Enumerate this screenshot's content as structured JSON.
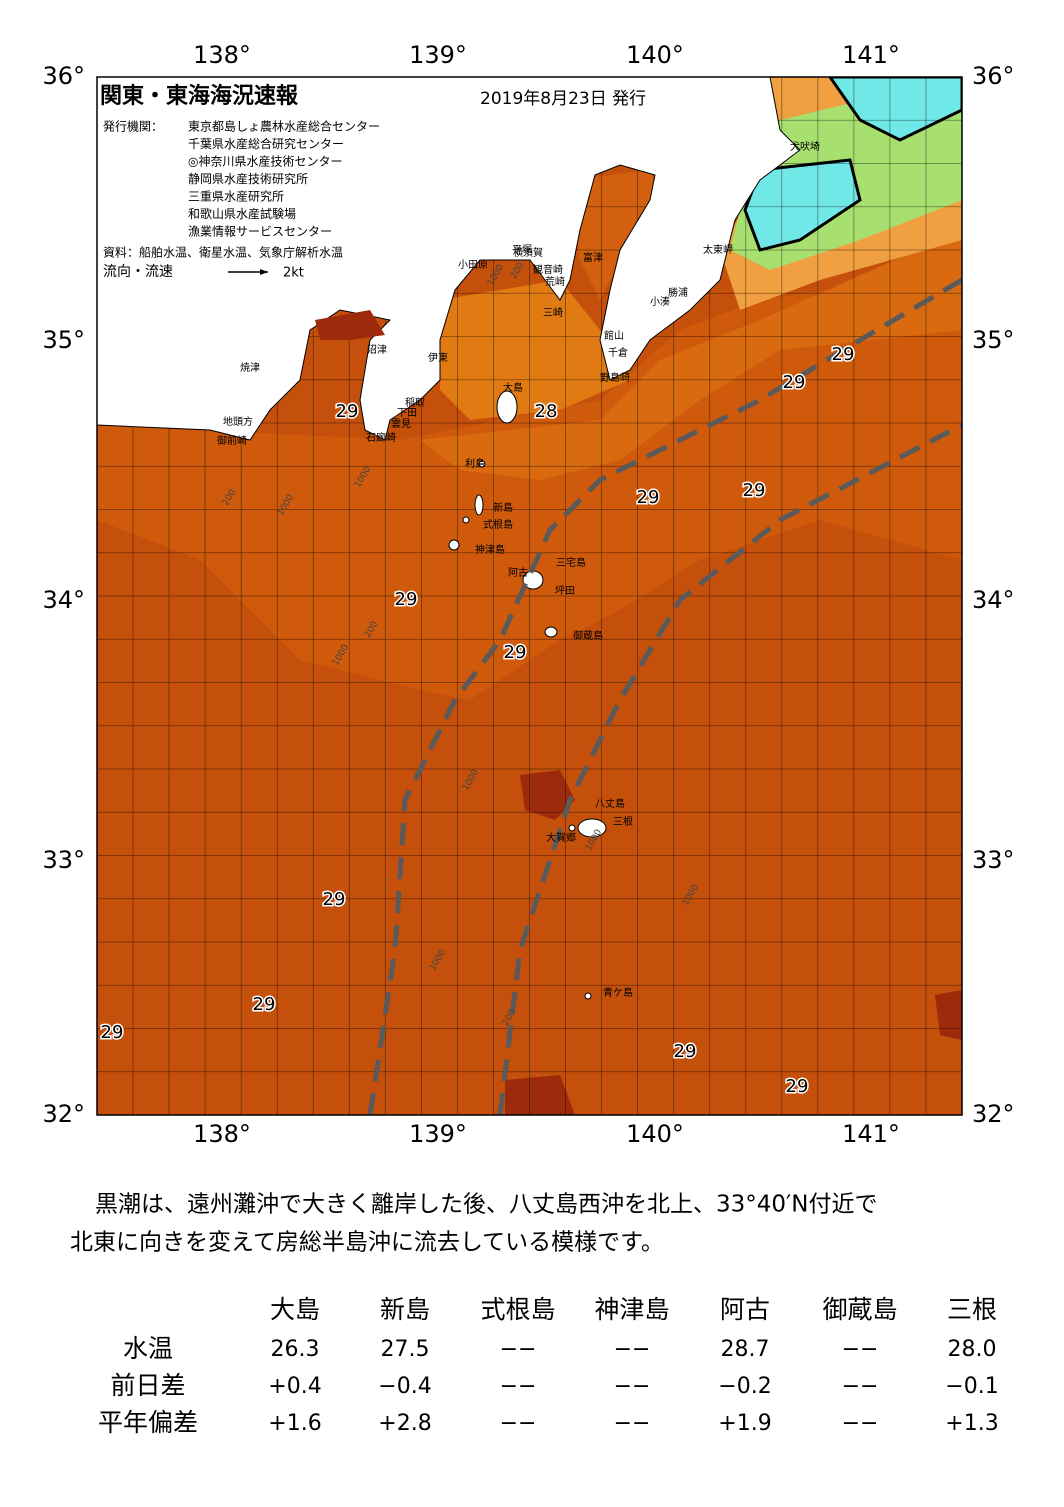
{
  "header": {
    "title": "関東・東海海況速報",
    "date": "2019年8月23日 発行",
    "agency_label": "発行機関：",
    "agencies": [
      "東京都島しょ農林水産総合センター",
      "千葉県水産総合研究センター",
      "◎神奈川県水産技術センター",
      "静岡県水産技術研究所",
      "三重県水産研究所",
      "和歌山県水産試験場",
      "漁業情報サービスセンター"
    ],
    "source": "資料：船舶水温、衛星水温、気象庁解析水温",
    "flow_label": "流向・流速",
    "flow_scale": "2kt"
  },
  "map": {
    "lon_labels": [
      "138°",
      "139°",
      "140°",
      "141°"
    ],
    "lat_labels": [
      "36°",
      "35°",
      "34°",
      "33°",
      "32°"
    ],
    "temperature_labels": [
      "29",
      "28",
      "29",
      "29",
      "29",
      "29",
      "29",
      "29",
      "29",
      "29",
      "29",
      "29",
      "29"
    ],
    "places": [
      "犬吠埼",
      "太東岬",
      "勝浦",
      "小湊",
      "館山",
      "千倉",
      "野島崎",
      "富津",
      "横須賀",
      "観音崎",
      "平塚",
      "小田原",
      "荒崎",
      "三崎",
      "大島",
      "伊東",
      "沼津",
      "焼津",
      "稲取",
      "下田",
      "雲見",
      "石廊崎",
      "地頭方",
      "御前崎",
      "利島",
      "新島",
      "式根島",
      "神津島",
      "阿古",
      "三宅島",
      "坪田",
      "御蔵島",
      "八丈島",
      "三根",
      "大賀郷",
      "青ケ島"
    ],
    "contours": [
      "1000",
      "200",
      "1000",
      "200",
      "1000",
      "200",
      "1000",
      "1000",
      "1000",
      "200",
      "1000",
      "1000"
    ]
  },
  "summary": [
    "黒潮は、遠州灘沖で大きく離岸した後、八丈島西沖を北上、33°40′N付近で",
    "北東に向きを変えて房総半島沖に流去している模様です。"
  ],
  "table": {
    "columns": [
      "大島",
      "新島",
      "式根島",
      "神津島",
      "阿古",
      "御蔵島",
      "三根"
    ],
    "rows": [
      {
        "label": "水温",
        "cells": [
          "26.3",
          "27.5",
          "−−",
          "−−",
          "28.7",
          "−−",
          "28.0"
        ]
      },
      {
        "label": "前日差",
        "cells": [
          "+0.4",
          "−0.4",
          "−−",
          "−−",
          "−0.2",
          "−−",
          "−0.1"
        ]
      },
      {
        "label": "平年偏差",
        "cells": [
          "+1.6",
          "+2.8",
          "−−",
          "−−",
          "+1.9",
          "−−",
          "+1.3"
        ]
      }
    ]
  }
}
